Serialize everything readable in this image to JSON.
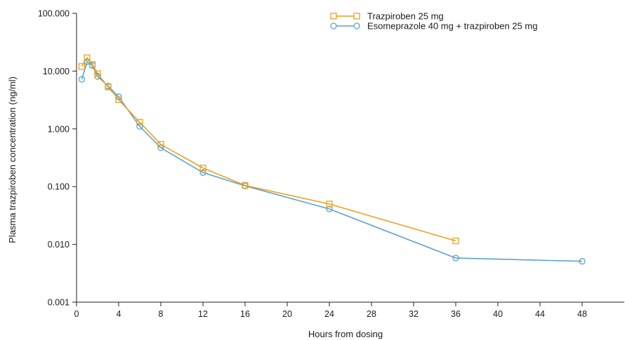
{
  "chart_data": {
    "type": "line",
    "xlabel": "Hours from dosing",
    "ylabel": "Plasma trazpiroben concentration (ng/ml)",
    "y_scale": "log",
    "xlim": [
      0,
      52
    ],
    "ylim": [
      0.001,
      100
    ],
    "x_ticks": [
      0,
      4,
      8,
      12,
      16,
      20,
      24,
      28,
      32,
      36,
      40,
      44,
      48
    ],
    "y_ticks": [
      0.001,
      0.01,
      0.1,
      1,
      10,
      100
    ],
    "x_tick_labels": [
      "0",
      "4",
      "8",
      "12",
      "16",
      "20",
      "24",
      "28",
      "32",
      "36",
      "40",
      "44",
      "48"
    ],
    "y_tick_labels": [
      "0.001",
      "0.010",
      "0.100",
      "1.000",
      "10.000",
      "100.000"
    ],
    "legend_position": "top-right",
    "series": [
      {
        "name": "Trazpiroben 25 mg",
        "color": "#e8a020",
        "marker": "square",
        "x": [
          0.5,
          1,
          1.5,
          2,
          3,
          4,
          6,
          8,
          12,
          16,
          24,
          36
        ],
        "y": [
          12,
          17,
          13,
          9,
          5.3,
          3.2,
          1.3,
          0.54,
          0.21,
          0.105,
          0.05,
          0.0115
        ]
      },
      {
        "name": "Esomeprazole 40 mg + trazpiroben 25 mg",
        "color": "#5ba3c9",
        "marker": "circle",
        "x": [
          0.5,
          1,
          1.5,
          2,
          3,
          4,
          6,
          8,
          12,
          16,
          24,
          36,
          48
        ],
        "y": [
          7.2,
          14.5,
          12.5,
          8.1,
          5.5,
          3.6,
          1.1,
          0.47,
          0.175,
          0.103,
          0.041,
          0.0058,
          0.0051
        ]
      }
    ]
  }
}
